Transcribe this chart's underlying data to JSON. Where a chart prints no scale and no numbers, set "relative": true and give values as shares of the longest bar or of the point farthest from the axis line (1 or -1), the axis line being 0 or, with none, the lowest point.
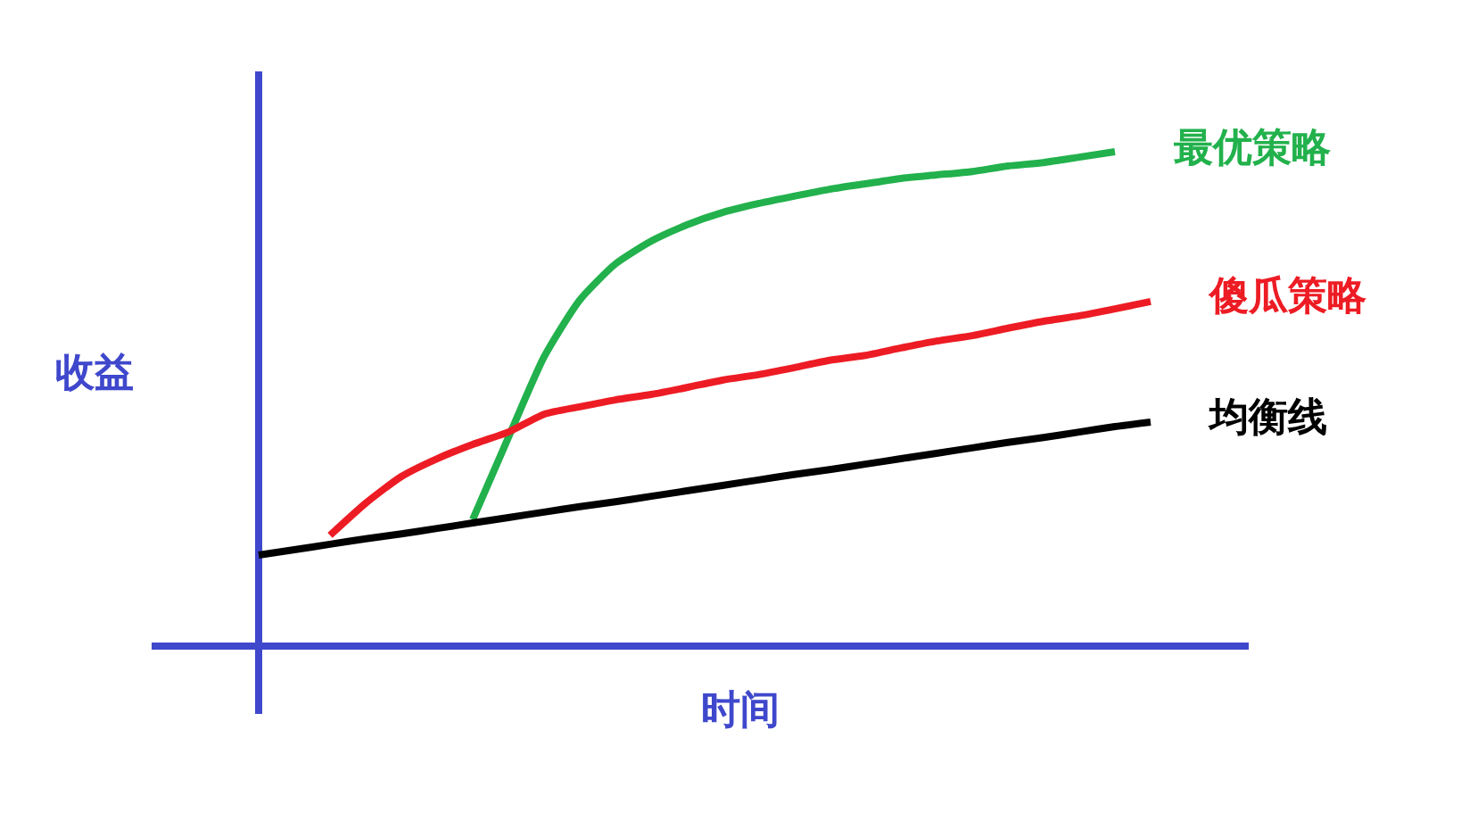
{
  "chart_data": {
    "type": "line",
    "relative": true,
    "xlabel": "时间",
    "ylabel": "收益",
    "categories": [
      null,
      null,
      null,
      null,
      null,
      null,
      null,
      null,
      null,
      null,
      null,
      null,
      null,
      null,
      null,
      null,
      null,
      null,
      null,
      null,
      null,
      null,
      null,
      null,
      null,
      null
    ],
    "series": [
      {
        "name": "最优策略",
        "color": "#22b14c",
        "values": [
          null,
          null,
          null,
          null,
          null,
          null,
          0.256,
          0.422,
          0.585,
          0.7,
          0.773,
          0.819,
          0.852,
          0.877,
          0.895,
          0.91,
          0.924,
          0.935,
          0.946,
          0.953,
          0.96,
          0.971,
          0.978,
          0.989,
          1,
          null
        ]
      },
      {
        "name": "傻瓜策略",
        "color": "#ed1c24",
        "values": [
          null,
          null,
          0.224,
          0.289,
          0.343,
          0.379,
          0.408,
          0.433,
          0.469,
          0.484,
          0.498,
          0.509,
          0.523,
          0.538,
          0.549,
          0.563,
          0.578,
          0.588,
          0.603,
          0.617,
          0.628,
          0.643,
          0.657,
          0.668,
          0.682,
          0.697
        ]
      },
      {
        "name": "均衡线",
        "color": "#000000",
        "values": [
          0.184,
          0.195,
          0.206,
          0.217,
          0.227,
          0.238,
          0.249,
          0.26,
          0.271,
          0.282,
          0.292,
          0.303,
          0.314,
          0.325,
          0.336,
          0.347,
          0.357,
          0.368,
          0.379,
          0.39,
          0.401,
          0.412,
          0.422,
          0.433,
          0.444,
          0.453
        ]
      }
    ],
    "legend": false,
    "marker": "none",
    "line_style": "solid"
  }
}
